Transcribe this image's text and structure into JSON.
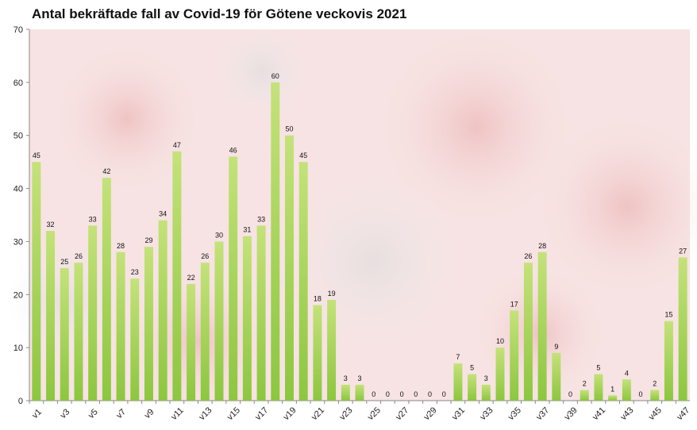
{
  "chart_data": {
    "type": "bar",
    "title": "Antal bekräftade fall av Covid-19 för Götene veckovis 2021",
    "xlabel": "",
    "ylabel": "",
    "ylim": [
      0,
      70
    ],
    "yticks": [
      0,
      10,
      20,
      30,
      40,
      50,
      60,
      70
    ],
    "grid": false,
    "legend": "none",
    "bar_color": "#8cc63f",
    "bar_color_light": "#c4e27a",
    "categories": [
      "v1",
      "v2",
      "v3",
      "v4",
      "v5",
      "v6",
      "v7",
      "v8",
      "v9",
      "v10",
      "v11",
      "v12",
      "v13",
      "v14",
      "v15",
      "v16",
      "v17",
      "v18",
      "v19",
      "v20",
      "v21",
      "v22",
      "v23",
      "v24",
      "v25",
      "v26",
      "v27",
      "v28",
      "v29",
      "v30",
      "v31",
      "v32",
      "v33",
      "v34",
      "v35",
      "v36",
      "v37",
      "v38",
      "v39",
      "v40",
      "v41",
      "v42",
      "v43",
      "v44",
      "v45",
      "v46",
      "v47"
    ],
    "shown_tick_labels": [
      "v1",
      "v3",
      "v5",
      "v7",
      "v9",
      "v11",
      "v13",
      "v15",
      "v17",
      "v19",
      "v21",
      "v23",
      "v25",
      "v27",
      "v29",
      "v31",
      "v33",
      "v35",
      "v37",
      "v39",
      "v41",
      "v43",
      "v45",
      "v47"
    ],
    "values": [
      45,
      32,
      25,
      26,
      33,
      42,
      28,
      23,
      29,
      34,
      47,
      22,
      26,
      30,
      46,
      31,
      33,
      60,
      50,
      45,
      18,
      19,
      3,
      3,
      0,
      0,
      0,
      0,
      0,
      0,
      7,
      5,
      3,
      10,
      17,
      26,
      28,
      9,
      0,
      2,
      5,
      1,
      4,
      0,
      2,
      15,
      27
    ]
  }
}
